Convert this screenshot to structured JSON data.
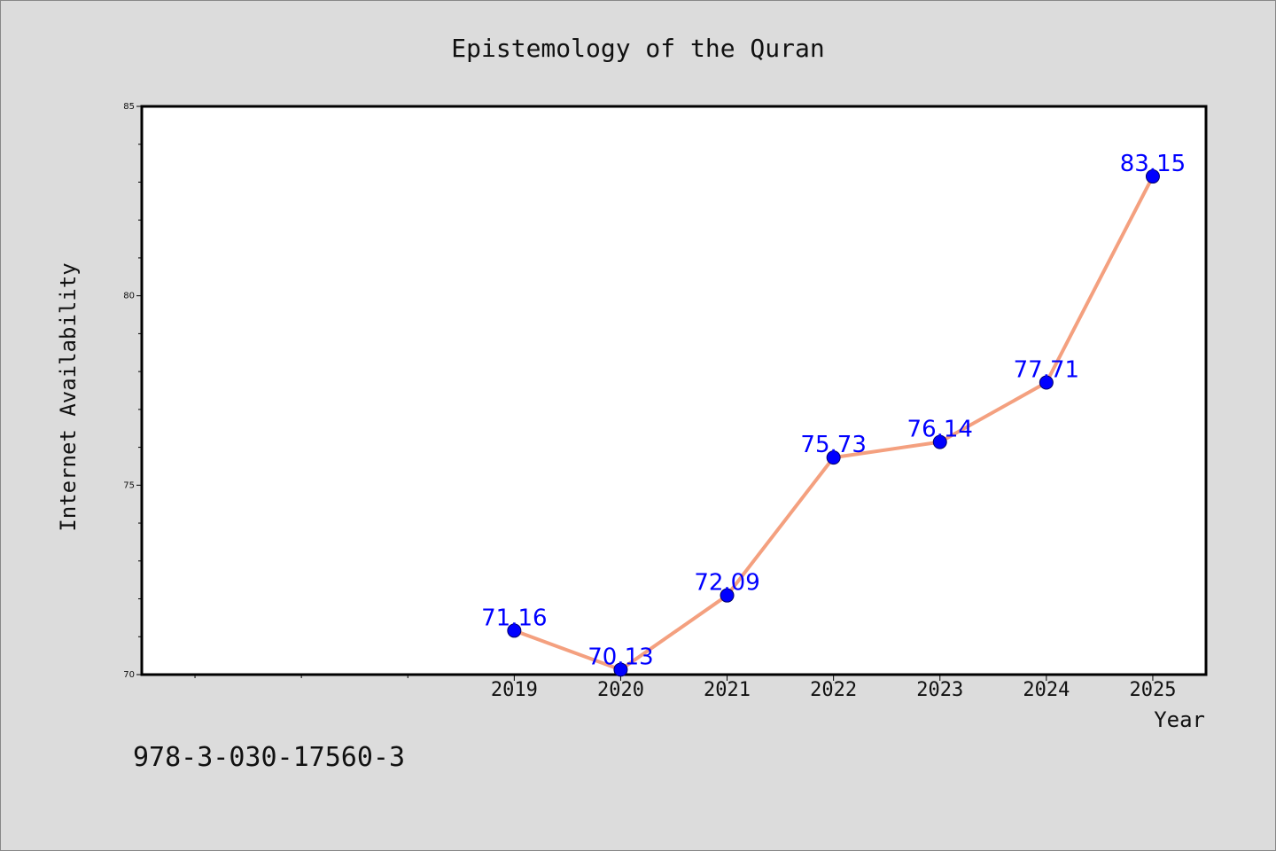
{
  "colors": {
    "background": "#dcdcdc",
    "plot_background": "#ffffff",
    "line": "#f4a07f",
    "marker": "#0000ff",
    "data_label": "#0000ff"
  },
  "footer": {
    "isbn": "978-3-030-17560-3"
  },
  "chart_data": {
    "type": "line",
    "title": "Epistemology of the Quran",
    "xlabel": "Year",
    "ylabel": "Internet Availability",
    "x": [
      "2019",
      "2020",
      "2021",
      "2022",
      "2023",
      "2024",
      "2025"
    ],
    "x_numeric": [
      2019,
      2020,
      2021,
      2022,
      2023,
      2024,
      2025
    ],
    "xlim": [
      2015.5,
      2025.5
    ],
    "ylim": [
      70,
      85
    ],
    "yticks": [
      70,
      75,
      80,
      85
    ],
    "y_minor_step": 1,
    "grid": false,
    "legend": "none",
    "data_labels": [
      "71.16",
      "70.13",
      "72.09",
      "75.73",
      "76.14",
      "77.71",
      "83.15"
    ],
    "series": [
      {
        "values": [
          71.16,
          70.13,
          72.09,
          75.73,
          76.14,
          77.71,
          83.15
        ]
      }
    ]
  }
}
